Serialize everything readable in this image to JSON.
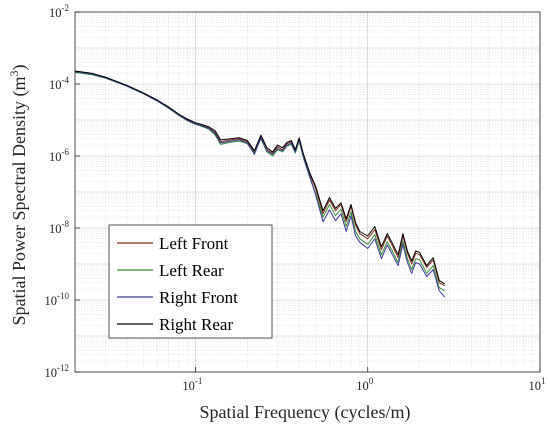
{
  "chart_data": {
    "type": "line",
    "title": "",
    "xlabel": "Spatial Frequency (cycles/m)",
    "ylabel_main": "Spatial Power Spectral Density (m",
    "ylabel_sup": "3",
    "ylabel_close": ")",
    "x_scale": "log",
    "y_scale": "log",
    "xlim": [
      0.02,
      10
    ],
    "ylim": [
      1e-12,
      0.01
    ],
    "grid": true,
    "minor_grid": true,
    "legend_position": "lower-left",
    "x_ticks": [
      {
        "value": 0.1,
        "base": "10",
        "exp": "-1"
      },
      {
        "value": 1,
        "base": "10",
        "exp": "0"
      },
      {
        "value": 10,
        "base": "10",
        "exp": "1"
      }
    ],
    "y_ticks": [
      {
        "value": 1e-12,
        "base": "10",
        "exp": "-12"
      },
      {
        "value": 1e-10,
        "base": "10",
        "exp": "-10"
      },
      {
        "value": 1e-08,
        "base": "10",
        "exp": "-8"
      },
      {
        "value": 1e-06,
        "base": "10",
        "exp": "-6"
      },
      {
        "value": 0.0001,
        "base": "10",
        "exp": "-4"
      },
      {
        "value": 0.01,
        "base": "10",
        "exp": "-2"
      }
    ],
    "series": [
      {
        "name": "Left Front",
        "color": "#8b2e1e",
        "x": [
          0.02,
          0.025,
          0.03,
          0.04,
          0.05,
          0.06,
          0.07,
          0.08,
          0.09,
          0.1,
          0.11,
          0.12,
          0.13,
          0.14,
          0.16,
          0.18,
          0.2,
          0.22,
          0.24,
          0.26,
          0.28,
          0.3,
          0.32,
          0.34,
          0.36,
          0.38,
          0.4,
          0.42,
          0.44,
          0.46,
          0.5,
          0.55,
          0.6,
          0.65,
          0.7,
          0.75,
          0.8,
          0.85,
          0.9,
          1.0,
          1.1,
          1.2,
          1.3,
          1.4,
          1.5,
          1.6,
          1.7,
          1.8,
          1.9,
          2.0,
          2.2,
          2.4,
          2.6,
          2.8
        ],
        "y": [
          0.00022,
          0.00019,
          0.00015,
          9e-05,
          5.5e-05,
          3.5e-05,
          2.2e-05,
          1.4e-05,
          1e-05,
          8e-06,
          7e-06,
          6e-06,
          4.5e-06,
          2.5e-06,
          2.8e-06,
          3e-06,
          2.5e-06,
          1.3e-06,
          3.5e-06,
          1.5e-06,
          1.2e-06,
          1.8e-06,
          1.5e-06,
          2.2e-06,
          2.5e-06,
          1.4e-06,
          3e-06,
          1.2e-06,
          6e-07,
          3.2e-07,
          1.2e-07,
          2.5e-08,
          6e-08,
          3e-08,
          4.5e-08,
          1.5e-08,
          4e-08,
          1.2e-08,
          7e-09,
          5e-09,
          9e-09,
          2.5e-09,
          6e-09,
          3e-09,
          1.5e-09,
          6e-09,
          2e-09,
          1e-09,
          2e-09,
          1.8e-09,
          8e-10,
          1.3e-09,
          3e-10,
          2.5e-10
        ]
      },
      {
        "name": "Left Rear",
        "color": "#2f8f2f",
        "x": [
          0.02,
          0.025,
          0.03,
          0.04,
          0.05,
          0.06,
          0.07,
          0.08,
          0.09,
          0.1,
          0.11,
          0.12,
          0.13,
          0.14,
          0.16,
          0.18,
          0.2,
          0.22,
          0.24,
          0.26,
          0.28,
          0.3,
          0.32,
          0.34,
          0.36,
          0.38,
          0.4,
          0.42,
          0.44,
          0.46,
          0.5,
          0.55,
          0.6,
          0.65,
          0.7,
          0.75,
          0.8,
          0.85,
          0.9,
          1.0,
          1.1,
          1.2,
          1.3,
          1.4,
          1.5,
          1.6,
          1.7,
          1.8,
          1.9,
          2.0,
          2.2,
          2.4,
          2.6,
          2.8
        ],
        "y": [
          0.00021,
          0.00018,
          0.000145,
          8.7e-05,
          5.3e-05,
          3.4e-05,
          2.1e-05,
          1.35e-05,
          9.5e-06,
          7.6e-06,
          6.5e-06,
          5.5e-06,
          3.8e-06,
          2.1e-06,
          2.4e-06,
          2.6e-06,
          2.2e-06,
          1.2e-06,
          3e-06,
          1.3e-06,
          1e-06,
          1.5e-06,
          1.3e-06,
          1.9e-06,
          2.1e-06,
          1.2e-06,
          2.6e-06,
          1e-06,
          5e-07,
          2.6e-07,
          9e-08,
          2e-08,
          4.5e-08,
          2.2e-08,
          3.3e-08,
          1.1e-08,
          2.8e-08,
          8e-09,
          5e-09,
          3.5e-09,
          6.5e-09,
          1.8e-09,
          4.2e-09,
          2.1e-09,
          1.1e-09,
          4.3e-09,
          1.4e-09,
          7e-10,
          1.4e-09,
          1.3e-09,
          5.5e-10,
          9e-10,
          2.2e-10,
          1.8e-10
        ]
      },
      {
        "name": "Right Front",
        "color": "#3a3a9a",
        "x": [
          0.02,
          0.025,
          0.03,
          0.04,
          0.05,
          0.06,
          0.07,
          0.08,
          0.09,
          0.1,
          0.11,
          0.12,
          0.13,
          0.14,
          0.16,
          0.18,
          0.2,
          0.22,
          0.24,
          0.26,
          0.28,
          0.3,
          0.32,
          0.34,
          0.36,
          0.38,
          0.4,
          0.42,
          0.44,
          0.46,
          0.5,
          0.55,
          0.6,
          0.65,
          0.7,
          0.75,
          0.8,
          0.85,
          0.9,
          1.0,
          1.1,
          1.2,
          1.3,
          1.4,
          1.5,
          1.6,
          1.7,
          1.8,
          1.9,
          2.0,
          2.2,
          2.4,
          2.6,
          2.8
        ],
        "y": [
          0.00022,
          0.00019,
          0.00015,
          8.8e-05,
          5.4e-05,
          3.4e-05,
          2.15e-05,
          1.38e-05,
          9.7e-06,
          7.8e-06,
          6.8e-06,
          5.8e-06,
          4.2e-06,
          2.3e-06,
          2.6e-06,
          2.8e-06,
          2.3e-06,
          1.1e-06,
          3.2e-06,
          1.4e-06,
          1.1e-06,
          1.6e-06,
          1.4e-06,
          2e-06,
          2.3e-06,
          1.3e-06,
          2.8e-06,
          1.1e-06,
          5.2e-07,
          2.8e-07,
          8e-08,
          1.5e-08,
          3.2e-08,
          1.6e-08,
          2.5e-08,
          8e-09,
          2.2e-08,
          6e-09,
          4e-09,
          2.7e-09,
          5e-09,
          1.4e-09,
          3.4e-09,
          1.7e-09,
          9e-10,
          3.5e-09,
          1.1e-09,
          5.5e-10,
          1.1e-09,
          1e-09,
          4.5e-10,
          7e-10,
          1.8e-10,
          1.2e-10
        ]
      },
      {
        "name": "Right Rear",
        "color": "#000000",
        "x": [
          0.02,
          0.025,
          0.03,
          0.04,
          0.05,
          0.06,
          0.07,
          0.08,
          0.09,
          0.1,
          0.11,
          0.12,
          0.13,
          0.14,
          0.16,
          0.18,
          0.2,
          0.22,
          0.24,
          0.26,
          0.28,
          0.3,
          0.32,
          0.34,
          0.36,
          0.38,
          0.4,
          0.42,
          0.44,
          0.46,
          0.5,
          0.55,
          0.6,
          0.65,
          0.7,
          0.75,
          0.8,
          0.85,
          0.9,
          1.0,
          1.1,
          1.2,
          1.3,
          1.4,
          1.5,
          1.6,
          1.7,
          1.8,
          1.9,
          2.0,
          2.2,
          2.4,
          2.6,
          2.8
        ],
        "y": [
          0.00023,
          0.0002,
          0.000155,
          9.2e-05,
          5.6e-05,
          3.6e-05,
          2.3e-05,
          1.45e-05,
          1.05e-05,
          8.4e-06,
          7.4e-06,
          6.4e-06,
          5e-06,
          2.8e-06,
          3e-06,
          3.2e-06,
          2.7e-06,
          1.4e-06,
          3.8e-06,
          1.7e-06,
          1.3e-06,
          2e-06,
          1.7e-06,
          2.4e-06,
          2.7e-06,
          1.5e-06,
          3.2e-06,
          1.3e-06,
          6.5e-07,
          3.5e-07,
          1.4e-07,
          3e-08,
          7e-08,
          3.5e-08,
          5e-08,
          1.8e-08,
          4.5e-08,
          1.4e-08,
          8e-09,
          6e-09,
          1.1e-08,
          3e-09,
          7e-09,
          3.5e-09,
          1.8e-09,
          7e-09,
          2.3e-09,
          1.2e-09,
          2.3e-09,
          2.1e-09,
          9e-10,
          1.5e-09,
          3.5e-10,
          2.8e-10
        ]
      }
    ]
  }
}
